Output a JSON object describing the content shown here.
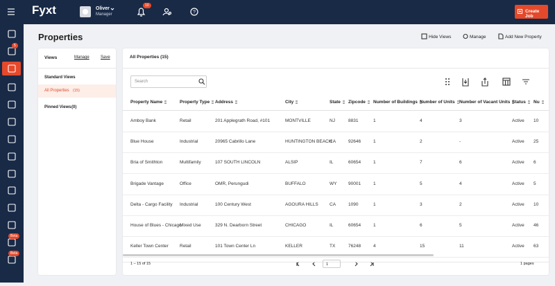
{
  "topbar": {
    "logo": "Fyxt",
    "user_name": "Oliver",
    "user_role": "Manager",
    "notification_count": "10",
    "create_button": "Create Job"
  },
  "sidebar": {
    "badge": "5",
    "beta_labels": [
      "Beta",
      "Beta"
    ]
  },
  "page": {
    "title": "Properties",
    "actions": [
      "Hide Views",
      "Manage",
      "Add New Property"
    ]
  },
  "views_panel": {
    "title": "Views",
    "manage": "Manage",
    "save": "Save",
    "standard_heading": "Standard Views",
    "active_view": "All Properties",
    "active_count": "(15)",
    "pinned_heading": "Pinned Views",
    "pinned_count": "(0)"
  },
  "table_panel": {
    "title": "All Properties (15)",
    "search_placeholder": "Search",
    "columns": [
      "Property Name",
      "Property Type",
      "Address",
      "City",
      "State",
      "Zipcode",
      "Number of Buildings",
      "Number of Units",
      "Number of Vacant Units",
      "Status",
      "Nu"
    ],
    "rows": [
      [
        "Amboy Bank",
        "Retail",
        "201 Applegrath Road, #101",
        "MONTVILLE",
        "NJ",
        "8831",
        "1",
        "4",
        "3",
        "Active",
        "10"
      ],
      [
        "Blue House",
        "Industrial",
        "20965 Cabrillo Lane",
        "HUNTINGTON BEACH",
        "CA",
        "92646",
        "1",
        "2",
        "-",
        "Active",
        "25"
      ],
      [
        "Bria of Smithton",
        "Multifamily",
        "107 SOUTH LINCOLN",
        "ALSIP",
        "IL",
        "60654",
        "1",
        "7",
        "6",
        "Active",
        "6"
      ],
      [
        "Brigade Vantage",
        "Office",
        "OMR, Perungudi",
        "BUFFALO",
        "WY",
        "90001",
        "1",
        "5",
        "4",
        "Active",
        "5"
      ],
      [
        "Delta - Cargo Facility",
        "Industrial",
        "100 Century West",
        "AGOURA HILLS",
        "CA",
        "1090",
        "1",
        "3",
        "2",
        "Active",
        "10"
      ],
      [
        "House of Blues - Chicago",
        "Mixed Use",
        "329 N. Dearborn Street",
        "CHICAGO",
        "IL",
        "60654",
        "1",
        "6",
        "5",
        "Active",
        "46"
      ],
      [
        "Keller Town Center",
        "Retail",
        "101 Town Center Ln",
        "KELLER",
        "TX",
        "76248",
        "4",
        "15",
        "11",
        "Active",
        "63"
      ]
    ],
    "footer": {
      "range": "1 – 15 of 15",
      "page_select": "1",
      "pages": "1 pages"
    }
  }
}
